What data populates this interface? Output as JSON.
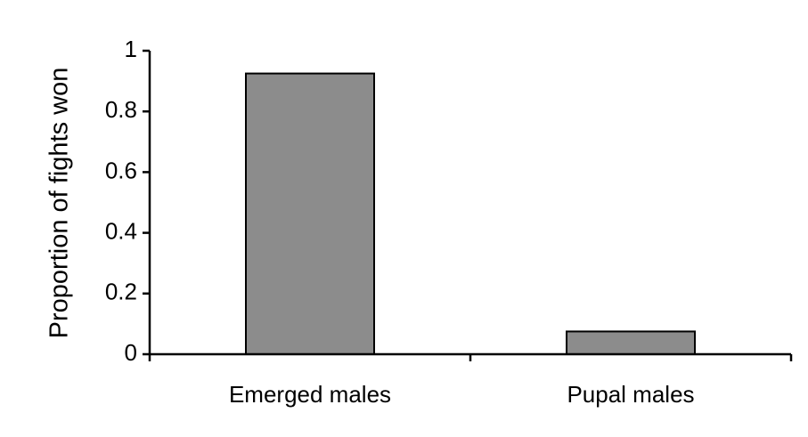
{
  "chart_data": {
    "type": "bar",
    "ylabel": "Proportion of fights won",
    "categories": [
      "Emerged males",
      "Pupal males"
    ],
    "values": [
      0.925,
      0.075
    ],
    "color": "#8c8c8c",
    "ylim": [
      0,
      1
    ],
    "yticks": [
      0,
      0.2,
      0.4,
      0.6,
      0.8,
      1
    ],
    "grid": false
  }
}
